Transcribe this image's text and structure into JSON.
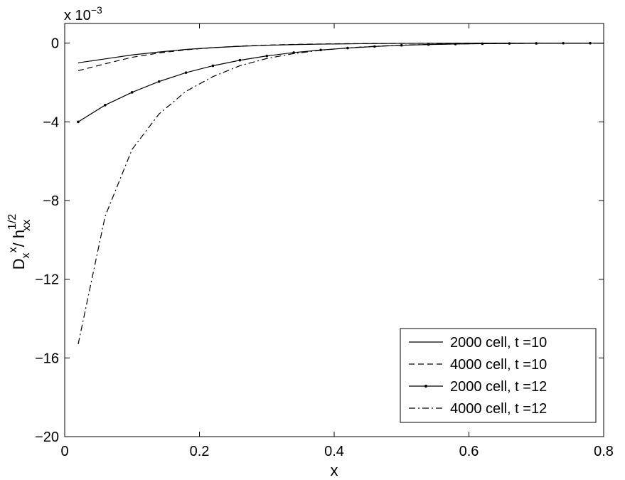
{
  "chart_data": {
    "type": "line",
    "title": "",
    "xlabel": "x",
    "ylabel": {
      "base": "D",
      "sub1": "x",
      "sup1": "x",
      "sep": "/ h",
      "sup2": "1/2",
      "sub2": "xx"
    },
    "y_multiplier": {
      "base": "x 10",
      "exp": "−3"
    },
    "xlim": [
      0,
      0.8
    ],
    "ylim": [
      -20,
      1
    ],
    "x_ticks": [
      0,
      0.2,
      0.4,
      0.6,
      0.8
    ],
    "x_tick_labels": [
      "0",
      "0.2",
      "0.4",
      "0.6",
      "0.8"
    ],
    "y_ticks": [
      -20,
      -16,
      -12,
      -8,
      -4,
      0
    ],
    "y_tick_labels": [
      "−20",
      "−16",
      "−12",
      "−8",
      "−4",
      "0"
    ],
    "grid": false,
    "legend_position": "bottom-right",
    "series": [
      {
        "name": "2000 cell, t =10",
        "style": "solid",
        "x": [
          0.02,
          0.06,
          0.1,
          0.14,
          0.18,
          0.22,
          0.26,
          0.3,
          0.34,
          0.38,
          0.42,
          0.46,
          0.5,
          0.54,
          0.58,
          0.62,
          0.66,
          0.7,
          0.74,
          0.78,
          0.8
        ],
        "y": [
          -1.0,
          -0.8,
          -0.6,
          -0.45,
          -0.32,
          -0.23,
          -0.16,
          -0.11,
          -0.075,
          -0.05,
          -0.034,
          -0.022,
          -0.015,
          -0.01,
          -0.006,
          -0.004,
          -0.002,
          -0.001,
          -0.0005,
          0,
          0
        ]
      },
      {
        "name": "4000 cell, t =10",
        "style": "dashed",
        "x": [
          0.02,
          0.06,
          0.1,
          0.14,
          0.18,
          0.22,
          0.26,
          0.3,
          0.34,
          0.38,
          0.42,
          0.46,
          0.5,
          0.54,
          0.58,
          0.62,
          0.66,
          0.7,
          0.74,
          0.78,
          0.8
        ],
        "y": [
          -1.4,
          -1.05,
          -0.72,
          -0.5,
          -0.34,
          -0.23,
          -0.15,
          -0.1,
          -0.065,
          -0.042,
          -0.027,
          -0.017,
          -0.011,
          -0.007,
          -0.004,
          -0.0025,
          -0.0015,
          -0.001,
          -0.0005,
          0,
          0
        ]
      },
      {
        "name": "2000 cell, t =12",
        "style": "solid-dot",
        "x": [
          0.02,
          0.06,
          0.1,
          0.14,
          0.18,
          0.22,
          0.26,
          0.3,
          0.34,
          0.38,
          0.42,
          0.46,
          0.5,
          0.54,
          0.58,
          0.62,
          0.66,
          0.7,
          0.74,
          0.78
        ],
        "y": [
          -4.0,
          -3.15,
          -2.5,
          -1.95,
          -1.5,
          -1.15,
          -0.87,
          -0.65,
          -0.48,
          -0.35,
          -0.25,
          -0.17,
          -0.11,
          -0.07,
          -0.045,
          -0.028,
          -0.017,
          -0.01,
          -0.005,
          -0.002
        ]
      },
      {
        "name": "4000 cell, t =12",
        "style": "dashdot",
        "x": [
          0.02,
          0.06,
          0.1,
          0.14,
          0.18,
          0.22,
          0.26,
          0.3,
          0.34,
          0.38,
          0.42,
          0.46,
          0.5,
          0.54,
          0.58,
          0.62,
          0.66,
          0.7,
          0.74,
          0.78,
          0.8
        ],
        "y": [
          -15.3,
          -8.8,
          -5.4,
          -3.6,
          -2.45,
          -1.7,
          -1.15,
          -0.78,
          -0.53,
          -0.36,
          -0.24,
          -0.16,
          -0.1,
          -0.065,
          -0.04,
          -0.025,
          -0.015,
          -0.008,
          -0.004,
          -0.001,
          0
        ]
      }
    ]
  }
}
